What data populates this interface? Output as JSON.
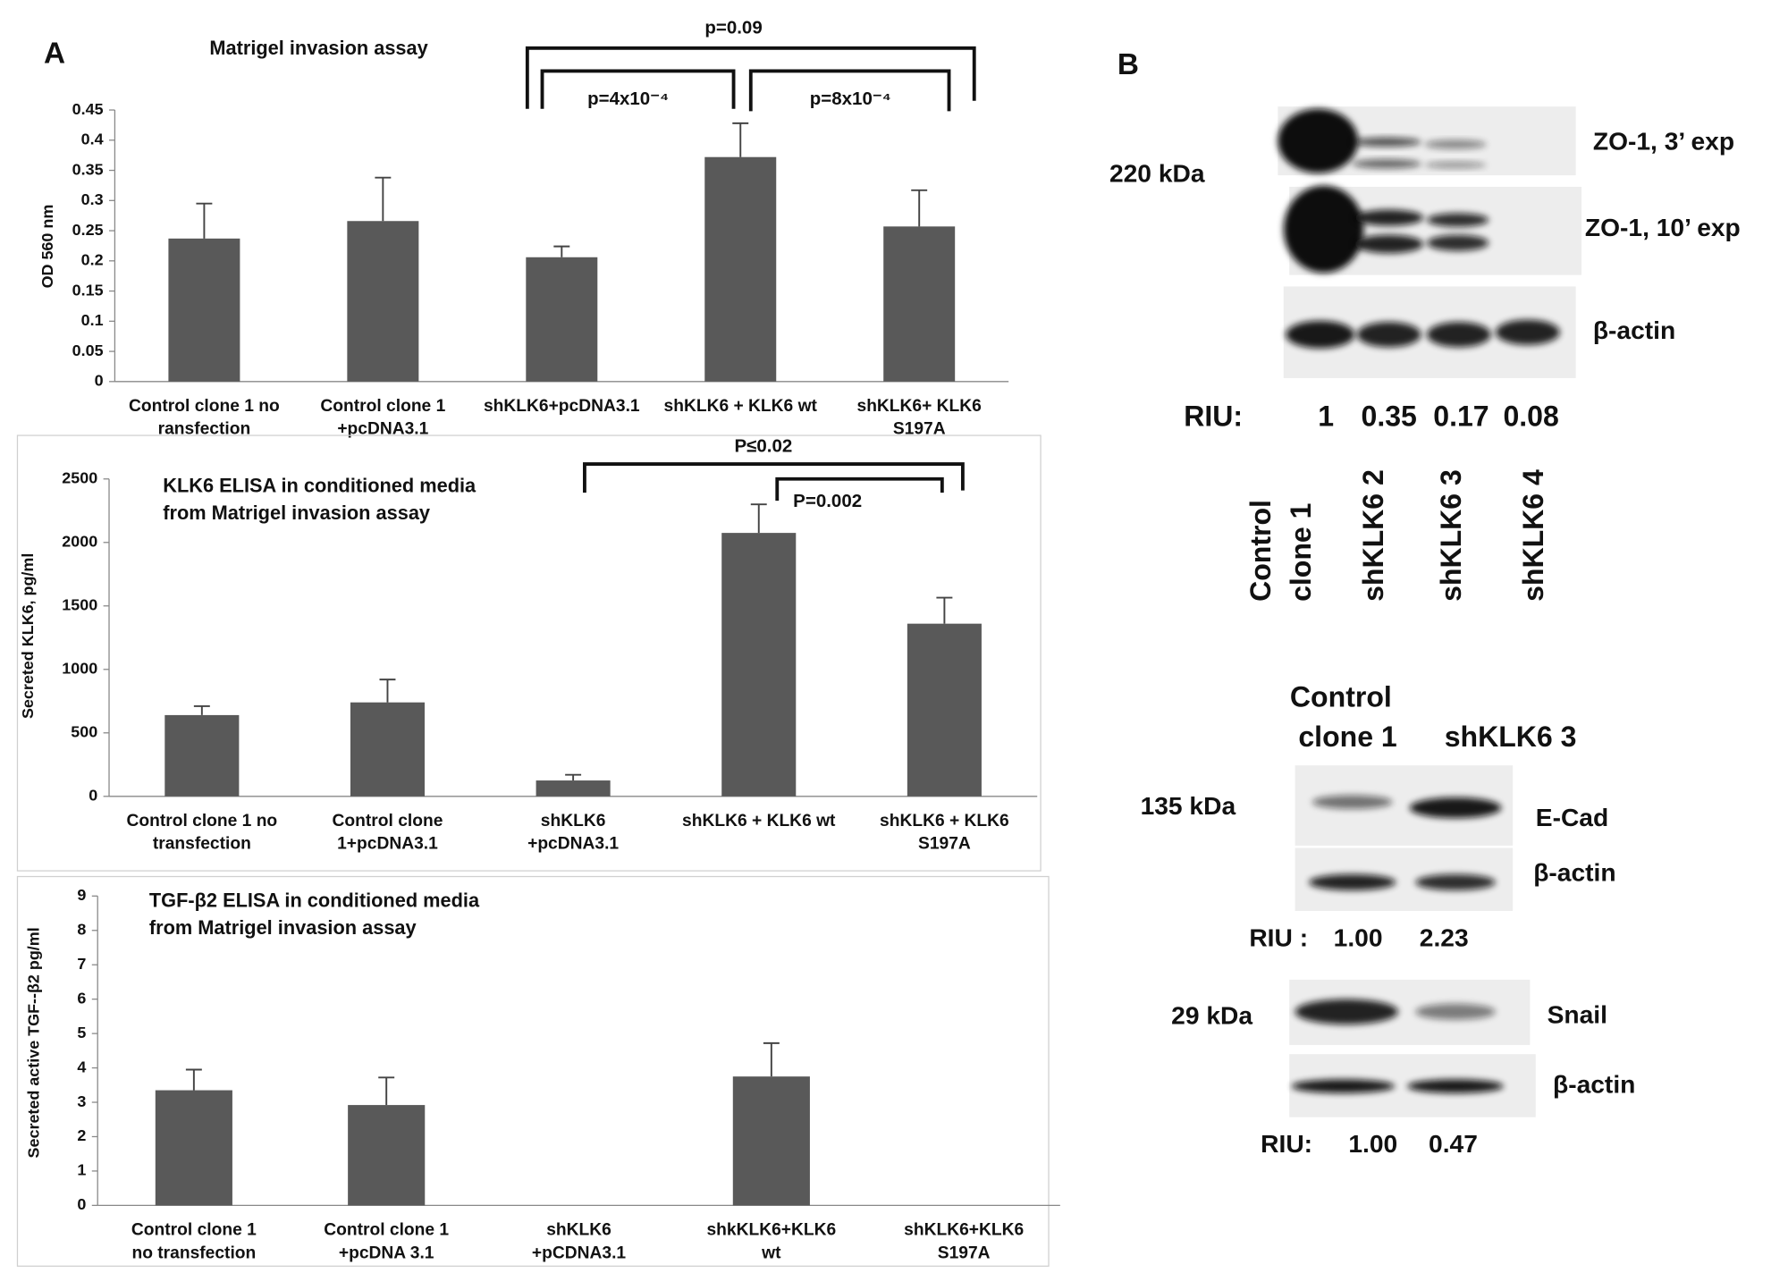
{
  "panel_labels": [
    "A",
    "B"
  ],
  "chart_data": [
    {
      "type": "bar",
      "title": "Matrigel invasion assay",
      "y_label": "OD 560 nm",
      "categories": [
        [
          "Control clone 1 no",
          "ransfection"
        ],
        [
          "Control clone 1",
          "+pcDNA3.1"
        ],
        [
          "shKLK6+pcDNA3.1"
        ],
        [
          "shKLK6 + KLK6 wt"
        ],
        [
          "shKLK6+ KLK6",
          "S197A"
        ]
      ],
      "values": [
        0.237,
        0.266,
        0.206,
        0.372,
        0.257
      ],
      "errors": [
        0.058,
        0.072,
        0.018,
        0.056,
        0.06
      ],
      "color": "#595959",
      "ylim": [
        0,
        0.45
      ],
      "yticks": [
        0,
        0.05,
        0.1,
        0.15,
        0.2,
        0.25,
        0.3,
        0.35,
        0.4,
        0.45
      ],
      "annotations": [
        "p=0.09",
        "p=4x10⁻⁴",
        "p=8x10⁻⁴"
      ]
    },
    {
      "type": "bar",
      "title": [
        "KLK6 ELISA in conditioned media",
        "from Matrigel invasion assay"
      ],
      "y_label": "Secreted KLK6, pg/ml",
      "categories": [
        [
          "Control clone 1 no",
          "transfection"
        ],
        [
          "Control clone",
          "1+pcDNA3.1"
        ],
        [
          "shKLK6",
          "+pcDNA3.1"
        ],
        [
          "shKLK6  + KLK6 wt"
        ],
        [
          "shKLK6 + KLK6",
          "S197A"
        ]
      ],
      "values": [
        640,
        740,
        125,
        2075,
        1360
      ],
      "errors": [
        70,
        180,
        45,
        225,
        205
      ],
      "color": "#595959",
      "ylim": [
        0,
        2500
      ],
      "yticks": [
        0,
        500,
        1000,
        1500,
        2000,
        2500
      ],
      "annotations": [
        "P≤0.02",
        "P=0.002"
      ]
    },
    {
      "type": "bar",
      "title": [
        "TGF-β2 ELISA in conditioned media",
        "from Matrigel invasion assay"
      ],
      "y_label": "Secreted  active TGF--β2 pg/ml",
      "categories": [
        [
          "Control clone 1",
          "no transfection"
        ],
        [
          "Control clone 1",
          "+pcDNA 3.1"
        ],
        [
          "shKLK6",
          "+pCDNA3.1"
        ],
        [
          "shkKLK6+KLK6",
          "wt"
        ],
        [
          "shKLK6+KLK6",
          "S197A"
        ]
      ],
      "values": [
        3.35,
        2.92,
        0,
        3.75,
        0
      ],
      "errors": [
        0.6,
        0.8,
        null,
        0.97,
        null
      ],
      "color": "#595959",
      "ylim": [
        0,
        9
      ],
      "yticks": [
        0,
        1,
        2,
        3,
        4,
        5,
        6,
        7,
        8,
        9
      ],
      "annotations": []
    }
  ],
  "blot_top": {
    "size": "220 kDa",
    "rows": [
      "ZO-1, 3’ exp",
      "ZO-1, 10’ exp",
      "β-actin"
    ],
    "riu_label": "RIU:",
    "riu": [
      "1",
      "0.35",
      "0.17",
      "0.08"
    ],
    "lanes": [
      [
        "Control",
        "clone 1"
      ],
      [
        "shKLK6 2"
      ],
      [
        "shKLK6 3"
      ],
      [
        "shKLK6 4"
      ]
    ]
  },
  "blot_bottom": {
    "lanes": [
      [
        "Control",
        "clone 1"
      ],
      [
        "shKLK6 3"
      ]
    ],
    "ecad": {
      "size": "135 kDa",
      "rows": [
        "E-Cad",
        "β-actin"
      ],
      "riu_label": "RIU :",
      "riu": [
        "1.00",
        "2.23"
      ]
    },
    "snail": {
      "size": "29 kDa",
      "rows": [
        "Snail",
        "β-actin"
      ],
      "riu_label": "RIU:",
      "riu": [
        "1.00",
        "0.47"
      ]
    }
  }
}
